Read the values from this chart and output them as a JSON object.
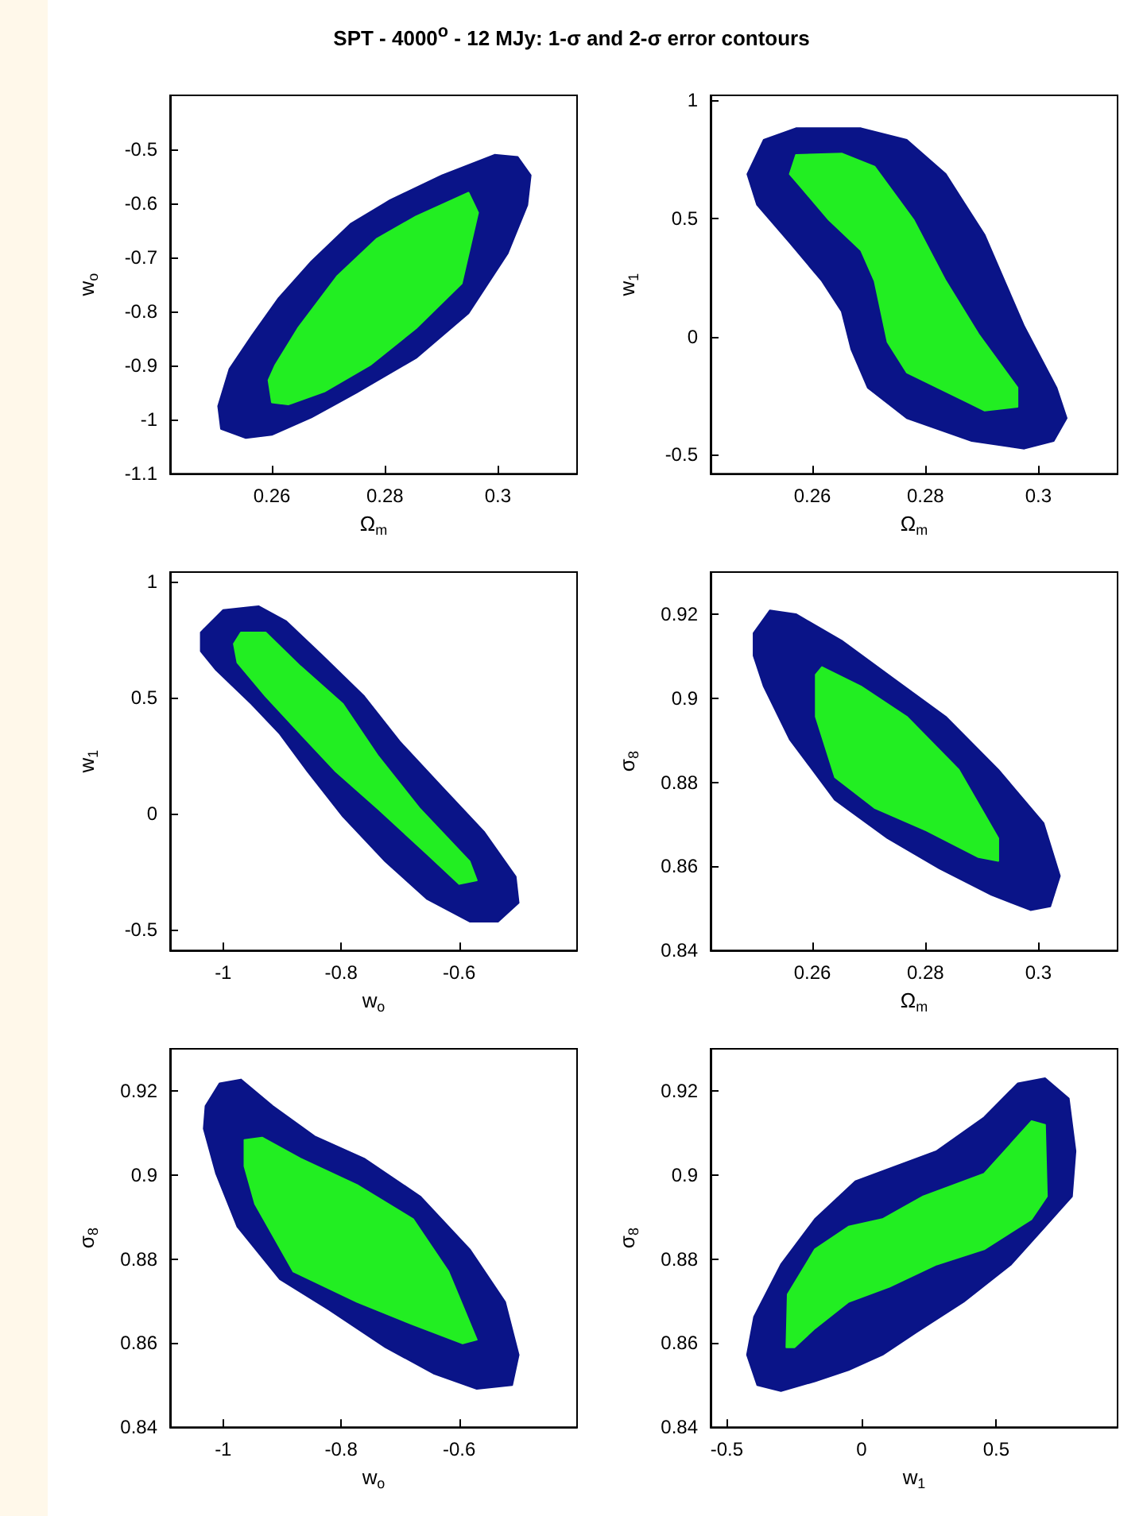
{
  "chart_data": [
    {
      "type": "area",
      "title": "SPT - 4000$^{o}$ - 12 MJy: 1-σ and 2-σ error contours",
      "xlabel": "Ω$_{m}$",
      "ylabel": "w$_{o}$",
      "xlim": [
        0.242,
        0.314
      ],
      "ylim": [
        -1.1,
        -0.4
      ],
      "xticks": [
        0.26,
        0.28,
        0.3
      ],
      "yticks": [
        -1.1,
        -1,
        -0.9,
        -0.8,
        -0.7,
        -0.6,
        -0.5
      ],
      "series": [
        {
          "color": "#0a1488",
          "x": [
            0.2505,
            0.251,
            0.2554,
            0.26,
            0.267,
            0.275,
            0.2855,
            0.2948,
            0.3017,
            0.3052,
            0.3058,
            0.3035,
            0.2994,
            0.2901,
            0.2809,
            0.2739,
            0.267,
            0.2612,
            0.2565,
            0.2525
          ],
          "values": [
            -0.975,
            -1.017,
            -1.034,
            -1.028,
            -0.996,
            -0.95,
            -0.886,
            -0.803,
            -0.693,
            -0.603,
            -0.548,
            -0.514,
            -0.51,
            -0.548,
            -0.594,
            -0.638,
            -0.707,
            -0.775,
            -0.844,
            -0.906
          ]
        },
        {
          "color": "#22ee22",
          "x": [
            0.2594,
            0.26,
            0.2629,
            0.2693,
            0.2774,
            0.2855,
            0.2936,
            0.2965,
            0.2948,
            0.2855,
            0.2786,
            0.2716,
            0.2646,
            0.2606
          ],
          "values": [
            -0.927,
            -0.968,
            -0.972,
            -0.948,
            -0.899,
            -0.831,
            -0.748,
            -0.617,
            -0.58,
            -0.624,
            -0.665,
            -0.734,
            -0.831,
            -0.899
          ]
        }
      ]
    },
    {
      "type": "area",
      "xlabel": "Ω$_{m}$",
      "ylabel": "w$_{1}$",
      "xlim": [
        0.242,
        0.314
      ],
      "ylim": [
        -0.58,
        1.02
      ],
      "xticks": [
        0.26,
        0.28,
        0.3
      ],
      "yticks": [
        -0.5,
        0,
        0.5,
        1
      ],
      "series": [
        {
          "color": "#0a1488",
          "x": [
            0.2485,
            0.2514,
            0.2571,
            0.2686,
            0.2767,
            0.2836,
            0.2905,
            0.294,
            0.2975,
            0.3032,
            0.305,
            0.3027,
            0.2975,
            0.2882,
            0.2767,
            0.2698,
            0.2669,
            0.2652,
            0.2617,
            0.256,
            0.2502
          ],
          "values": [
            0.687,
            0.832,
            0.881,
            0.881,
            0.832,
            0.687,
            0.429,
            0.235,
            0.042,
            -0.216,
            -0.345,
            -0.442,
            -0.474,
            -0.442,
            -0.345,
            -0.216,
            -0.055,
            0.106,
            0.235,
            0.397,
            0.558
          ]
        },
        {
          "color": "#22ee22",
          "x": [
            0.256,
            0.2571,
            0.2652,
            0.271,
            0.2779,
            0.2836,
            0.2894,
            0.2963,
            0.2963,
            0.2905,
            0.2767,
            0.2733,
            0.271,
            0.2686,
            0.2629,
            0.2583
          ],
          "values": [
            0.687,
            0.768,
            0.774,
            0.719,
            0.494,
            0.235,
            0.01,
            -0.216,
            -0.297,
            -0.313,
            -0.152,
            -0.023,
            0.235,
            0.365,
            0.494,
            0.623
          ]
        }
      ]
    },
    {
      "type": "area",
      "xlabel": "w$_{o}$",
      "ylabel": "w$_{1}$",
      "xlim": [
        -1.09,
        -0.4
      ],
      "ylim": [
        -0.59,
        1.04
      ],
      "xticks": [
        -1,
        -0.8,
        -0.6
      ],
      "yticks": [
        -0.5,
        0,
        0.5,
        1
      ],
      "series": [
        {
          "color": "#0a1488",
          "x": [
            -1.038,
            -1.0,
            -0.94,
            -0.893,
            -0.833,
            -0.761,
            -0.701,
            -0.63,
            -0.558,
            -0.504,
            -0.499,
            -0.534,
            -0.582,
            -0.654,
            -0.725,
            -0.797,
            -0.857,
            -0.904,
            -0.952,
            -1.012,
            -1.038
          ],
          "values": [
            0.78,
            0.877,
            0.893,
            0.828,
            0.683,
            0.505,
            0.311,
            0.117,
            -0.078,
            -0.272,
            -0.385,
            -0.466,
            -0.466,
            -0.369,
            -0.207,
            -0.013,
            0.181,
            0.343,
            0.472,
            0.618,
            0.699
          ]
        },
        {
          "color": "#22ee22",
          "x": [
            -0.982,
            -0.97,
            -0.928,
            -0.869,
            -0.797,
            -0.737,
            -0.666,
            -0.582,
            -0.57,
            -0.6,
            -0.654,
            -0.737,
            -0.809,
            -0.869,
            -0.928,
            -0.976
          ],
          "values": [
            0.731,
            0.78,
            0.78,
            0.634,
            0.472,
            0.246,
            0.019,
            -0.207,
            -0.288,
            -0.304,
            -0.175,
            0.019,
            0.181,
            0.343,
            0.505,
            0.65
          ]
        }
      ]
    },
    {
      "type": "area",
      "xlabel": "Ω$_{m}$",
      "ylabel": "σ$_{8}$",
      "xlim": [
        0.242,
        0.314
      ],
      "ylim": [
        0.84,
        0.93
      ],
      "xticks": [
        0.26,
        0.28,
        0.3
      ],
      "yticks": [
        0.84,
        0.86,
        0.88,
        0.9,
        0.92
      ],
      "series": [
        {
          "color": "#0a1488",
          "x": [
            0.2496,
            0.2525,
            0.2571,
            0.2652,
            0.2744,
            0.2836,
            0.2929,
            0.3009,
            0.3038,
            0.3021,
            0.2986,
            0.2917,
            0.2825,
            0.2733,
            0.264,
            0.256,
            0.2514,
            0.2496
          ],
          "values": [
            0.9155,
            0.9209,
            0.92,
            0.9137,
            0.9046,
            0.8956,
            0.883,
            0.8703,
            0.8577,
            0.8505,
            0.8496,
            0.8532,
            0.8595,
            0.8667,
            0.8758,
            0.8902,
            0.9028,
            0.9101
          ]
        },
        {
          "color": "#22ee22",
          "x": [
            0.2606,
            0.2617,
            0.2686,
            0.2767,
            0.2859,
            0.2929,
            0.2929,
            0.2894,
            0.2802,
            0.271,
            0.264,
            0.2606
          ],
          "values": [
            0.9056,
            0.9074,
            0.9028,
            0.8956,
            0.883,
            0.8667,
            0.8613,
            0.8622,
            0.8685,
            0.8739,
            0.8812,
            0.8956
          ]
        }
      ]
    },
    {
      "type": "area",
      "xlabel": "w$_{o}$",
      "ylabel": "σ$_{8}$",
      "xlim": [
        -1.09,
        -0.4
      ],
      "ylim": [
        0.84,
        0.93
      ],
      "xticks": [
        -1,
        -0.8,
        -0.6
      ],
      "yticks": [
        0.84,
        0.86,
        0.88,
        0.9,
        0.92
      ],
      "series": [
        {
          "color": "#0a1488",
          "x": [
            -1.03,
            -1.006,
            -0.97,
            -0.916,
            -0.845,
            -0.761,
            -0.666,
            -0.582,
            -0.522,
            -0.499,
            -0.51,
            -0.57,
            -0.642,
            -0.725,
            -0.821,
            -0.904,
            -0.976,
            -1.012,
            -1.033
          ],
          "values": [
            0.9164,
            0.9218,
            0.9227,
            0.9164,
            0.9092,
            0.9039,
            0.8949,
            0.8823,
            0.8698,
            0.8572,
            0.85,
            0.8491,
            0.8527,
            0.859,
            0.868,
            0.8752,
            0.8877,
            0.9003,
            0.911
          ]
        },
        {
          "color": "#22ee22",
          "x": [
            -0.964,
            -0.934,
            -0.869,
            -0.773,
            -0.678,
            -0.618,
            -0.57,
            -0.594,
            -0.678,
            -0.773,
            -0.881,
            -0.946,
            -0.964
          ],
          "values": [
            0.9083,
            0.9089,
            0.9039,
            0.8976,
            0.8895,
            0.877,
            0.8608,
            0.8599,
            0.8644,
            0.8698,
            0.877,
            0.8931,
            0.9021
          ]
        }
      ]
    },
    {
      "type": "area",
      "xlabel": "w$_{1}$",
      "ylabel": "σ$_{8}$",
      "xlim": [
        -0.56,
        0.95
      ],
      "ylim": [
        0.84,
        0.93
      ],
      "xticks": [
        -0.5,
        0,
        0.5
      ],
      "yticks": [
        0.84,
        0.86,
        0.88,
        0.9,
        0.92
      ],
      "series": [
        {
          "color": "#0a1488",
          "x": [
            -0.425,
            -0.399,
            -0.299,
            -0.173,
            -0.023,
            0.128,
            0.279,
            0.455,
            0.58,
            0.681,
            0.769,
            0.794,
            0.781,
            0.681,
            0.555,
            0.379,
            0.204,
            0.078,
            -0.048,
            -0.173,
            -0.299,
            -0.387
          ],
          "values": [
            0.8572,
            0.8662,
            0.8787,
            0.8895,
            0.8985,
            0.9021,
            0.9057,
            0.9137,
            0.9218,
            0.923,
            0.9182,
            0.9057,
            0.8949,
            0.8877,
            0.8787,
            0.8698,
            0.8626,
            0.8572,
            0.8536,
            0.8509,
            0.8486,
            0.85
          ]
        },
        {
          "color": "#22ee22",
          "x": [
            -0.279,
            -0.274,
            -0.173,
            -0.048,
            0.078,
            0.229,
            0.455,
            0.631,
            0.681,
            0.688,
            0.631,
            0.455,
            0.279,
            0.103,
            -0.048,
            -0.173,
            -0.249
          ],
          "values": [
            0.859,
            0.8716,
            0.8823,
            0.8877,
            0.8895,
            0.8949,
            0.9003,
            0.9128,
            0.9119,
            0.8949,
            0.8895,
            0.8823,
            0.8787,
            0.8734,
            0.8698,
            0.8635,
            0.859
          ]
        }
      ]
    }
  ]
}
